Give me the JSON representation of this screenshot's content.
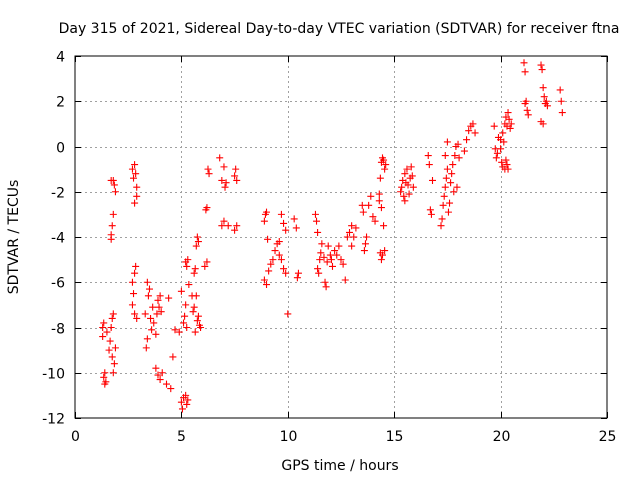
{
  "chart_data": {
    "type": "scatter",
    "title": "Day 315 of 2021, Sidereal Day-to-day VTEC variation (SDTVAR) for receiver ftna",
    "xlabel": "GPS time / hours",
    "ylabel": "SDTVAR / TECUs",
    "xlim": [
      0,
      25
    ],
    "ylim": [
      -12,
      4
    ],
    "xticks": [
      0,
      5,
      10,
      15,
      20,
      25
    ],
    "yticks": [
      -12,
      -10,
      -8,
      -6,
      -4,
      -2,
      0,
      2,
      4
    ],
    "xtick_labels": [
      "0",
      "5",
      "10",
      "15",
      "20",
      "25"
    ],
    "ytick_labels": [
      "-12",
      "-10",
      "-8",
      "-6",
      "-4",
      "-2",
      "0",
      "2",
      "4"
    ],
    "grid": true,
    "marker": "+",
    "color": "#ff0000",
    "series": [
      {
        "name": "SDTVAR",
        "points": [
          [
            1.3,
            -8.4
          ],
          [
            1.3,
            -8.0
          ],
          [
            1.35,
            -7.8
          ],
          [
            1.35,
            -10.2
          ],
          [
            1.4,
            -10.5
          ],
          [
            1.4,
            -10.0
          ],
          [
            1.45,
            -10.4
          ],
          [
            1.5,
            -8.2
          ],
          [
            1.6,
            -9.0
          ],
          [
            1.65,
            -8.6
          ],
          [
            1.7,
            -8.0
          ],
          [
            1.75,
            -7.6
          ],
          [
            1.8,
            -7.4
          ],
          [
            1.85,
            -9.6
          ],
          [
            1.8,
            -10.0
          ],
          [
            1.75,
            -9.3
          ],
          [
            1.9,
            -8.9
          ],
          [
            1.7,
            -3.9
          ],
          [
            1.75,
            -3.5
          ],
          [
            1.8,
            -3.0
          ],
          [
            1.7,
            -4.1
          ],
          [
            1.8,
            -1.5
          ],
          [
            1.85,
            -1.7
          ],
          [
            1.9,
            -2.0
          ],
          [
            1.7,
            -1.5
          ],
          [
            2.7,
            -1.0
          ],
          [
            2.75,
            -1.4
          ],
          [
            2.8,
            -0.8
          ],
          [
            2.85,
            -1.2
          ],
          [
            2.9,
            -2.2
          ],
          [
            2.9,
            -1.8
          ],
          [
            2.8,
            -2.5
          ],
          [
            2.7,
            -6.0
          ],
          [
            2.75,
            -6.5
          ],
          [
            2.8,
            -5.6
          ],
          [
            2.85,
            -5.3
          ],
          [
            2.7,
            -7.0
          ],
          [
            2.8,
            -7.4
          ],
          [
            2.9,
            -7.6
          ],
          [
            3.3,
            -7.4
          ],
          [
            3.35,
            -8.9
          ],
          [
            3.4,
            -8.5
          ],
          [
            3.45,
            -6.6
          ],
          [
            3.5,
            -6.3
          ],
          [
            3.55,
            -7.6
          ],
          [
            3.6,
            -8.1
          ],
          [
            3.65,
            -7.1
          ],
          [
            3.4,
            -6.0
          ],
          [
            3.7,
            -7.8
          ],
          [
            3.8,
            -8.3
          ],
          [
            3.85,
            -7.4
          ],
          [
            3.9,
            -6.8
          ],
          [
            4.0,
            -6.6
          ],
          [
            3.95,
            -7.1
          ],
          [
            4.05,
            -7.3
          ],
          [
            3.8,
            -9.8
          ],
          [
            3.9,
            -10.1
          ],
          [
            4.0,
            -10.3
          ],
          [
            4.1,
            -10.0
          ],
          [
            4.3,
            -10.5
          ],
          [
            4.5,
            -10.7
          ],
          [
            4.4,
            -6.7
          ],
          [
            4.6,
            -9.3
          ],
          [
            4.7,
            -8.1
          ],
          [
            4.9,
            -8.2
          ],
          [
            5.0,
            -6.4
          ],
          [
            5.1,
            -7.8
          ],
          [
            5.15,
            -7.5
          ],
          [
            5.2,
            -7.0
          ],
          [
            5.25,
            -8.0
          ],
          [
            5.0,
            -11.3
          ],
          [
            5.05,
            -11.6
          ],
          [
            5.1,
            -11.1
          ],
          [
            5.2,
            -11.0
          ],
          [
            5.25,
            -11.4
          ],
          [
            5.3,
            -11.2
          ],
          [
            5.2,
            -5.1
          ],
          [
            5.25,
            -5.3
          ],
          [
            5.3,
            -5.0
          ],
          [
            5.35,
            -6.1
          ],
          [
            5.5,
            -6.6
          ],
          [
            5.55,
            -7.3
          ],
          [
            5.6,
            -7.1
          ],
          [
            5.65,
            -8.2
          ],
          [
            5.7,
            -6.6
          ],
          [
            5.75,
            -7.7
          ],
          [
            5.8,
            -7.5
          ],
          [
            5.85,
            -7.9
          ],
          [
            5.9,
            -8.0
          ],
          [
            5.7,
            -4.4
          ],
          [
            5.75,
            -4.0
          ],
          [
            5.8,
            -4.2
          ],
          [
            5.6,
            -5.6
          ],
          [
            5.65,
            -5.4
          ],
          [
            6.1,
            -5.3
          ],
          [
            6.2,
            -5.1
          ],
          [
            6.25,
            -1.0
          ],
          [
            6.3,
            -1.2
          ],
          [
            6.15,
            -2.8
          ],
          [
            6.2,
            -2.7
          ],
          [
            6.8,
            -0.5
          ],
          [
            6.9,
            -1.5
          ],
          [
            7.0,
            -0.9
          ],
          [
            7.05,
            -1.8
          ],
          [
            7.1,
            -1.6
          ],
          [
            6.9,
            -3.5
          ],
          [
            7.0,
            -3.3
          ],
          [
            7.2,
            -3.5
          ],
          [
            7.5,
            -1.3
          ],
          [
            7.55,
            -1.0
          ],
          [
            7.6,
            -1.5
          ],
          [
            7.5,
            -3.7
          ],
          [
            7.6,
            -3.5
          ],
          [
            8.9,
            -3.3
          ],
          [
            8.95,
            -3.0
          ],
          [
            9.0,
            -2.9
          ],
          [
            9.05,
            -4.1
          ],
          [
            8.9,
            -5.9
          ],
          [
            9.0,
            -6.1
          ],
          [
            9.1,
            -5.5
          ],
          [
            9.2,
            -5.2
          ],
          [
            9.3,
            -5.0
          ],
          [
            9.4,
            -4.6
          ],
          [
            9.5,
            -4.3
          ],
          [
            9.6,
            -4.8
          ],
          [
            9.7,
            -5.0
          ],
          [
            9.8,
            -5.4
          ],
          [
            9.9,
            -5.6
          ],
          [
            9.6,
            -4.2
          ],
          [
            9.7,
            -3.0
          ],
          [
            9.8,
            -3.4
          ],
          [
            9.9,
            -3.7
          ],
          [
            10.0,
            -7.4
          ],
          [
            10.3,
            -3.2
          ],
          [
            10.4,
            -3.6
          ],
          [
            10.5,
            -5.6
          ],
          [
            10.45,
            -5.8
          ],
          [
            11.3,
            -3.0
          ],
          [
            11.35,
            -3.3
          ],
          [
            11.4,
            -3.8
          ],
          [
            11.4,
            -5.4
          ],
          [
            11.45,
            -5.6
          ],
          [
            11.5,
            -5.0
          ],
          [
            11.55,
            -4.7
          ],
          [
            11.6,
            -4.3
          ],
          [
            11.7,
            -4.9
          ],
          [
            11.75,
            -6.0
          ],
          [
            11.8,
            -6.2
          ],
          [
            11.85,
            -5.1
          ],
          [
            11.9,
            -4.4
          ],
          [
            12.0,
            -4.8
          ],
          [
            12.05,
            -5.0
          ],
          [
            12.1,
            -5.3
          ],
          [
            12.2,
            -4.6
          ],
          [
            12.3,
            -4.8
          ],
          [
            12.4,
            -4.4
          ],
          [
            12.5,
            -5.0
          ],
          [
            12.6,
            -5.2
          ],
          [
            12.7,
            -5.9
          ],
          [
            12.8,
            -4.0
          ],
          [
            12.9,
            -3.8
          ],
          [
            13.0,
            -3.5
          ],
          [
            13.1,
            -4.0
          ],
          [
            13.2,
            -3.6
          ],
          [
            13.0,
            -4.4
          ],
          [
            13.5,
            -2.6
          ],
          [
            13.55,
            -2.9
          ],
          [
            13.6,
            -4.6
          ],
          [
            13.65,
            -4.3
          ],
          [
            13.7,
            -4.0
          ],
          [
            13.8,
            -2.6
          ],
          [
            13.9,
            -2.2
          ],
          [
            14.0,
            -3.1
          ],
          [
            14.1,
            -3.3
          ],
          [
            14.3,
            -2.1
          ],
          [
            14.35,
            -1.4
          ],
          [
            14.4,
            -0.7
          ],
          [
            14.45,
            -0.5
          ],
          [
            14.5,
            -0.6
          ],
          [
            14.55,
            -1.0
          ],
          [
            14.6,
            -0.8
          ],
          [
            14.3,
            -2.4
          ],
          [
            14.4,
            -2.7
          ],
          [
            14.5,
            -3.5
          ],
          [
            14.35,
            -4.7
          ],
          [
            14.4,
            -5.0
          ],
          [
            14.45,
            -4.8
          ],
          [
            14.55,
            -4.6
          ],
          [
            15.3,
            -2.0
          ],
          [
            15.35,
            -1.8
          ],
          [
            15.4,
            -1.5
          ],
          [
            15.45,
            -2.2
          ],
          [
            15.5,
            -1.2
          ],
          [
            15.55,
            -1.6
          ],
          [
            15.6,
            -1.0
          ],
          [
            15.65,
            -1.7
          ],
          [
            15.7,
            -2.1
          ],
          [
            15.75,
            -1.4
          ],
          [
            15.8,
            -0.9
          ],
          [
            15.85,
            -1.3
          ],
          [
            15.9,
            -1.8
          ],
          [
            15.5,
            -2.4
          ],
          [
            16.6,
            -0.4
          ],
          [
            16.65,
            -0.8
          ],
          [
            16.7,
            -2.8
          ],
          [
            16.75,
            -3.0
          ],
          [
            16.8,
            -1.5
          ],
          [
            17.2,
            -3.5
          ],
          [
            17.25,
            -3.2
          ],
          [
            17.3,
            -2.6
          ],
          [
            17.35,
            -2.2
          ],
          [
            17.4,
            -1.8
          ],
          [
            17.45,
            -1.4
          ],
          [
            17.5,
            -1.0
          ],
          [
            17.55,
            -2.9
          ],
          [
            17.6,
            -2.5
          ],
          [
            17.65,
            -1.6
          ],
          [
            17.7,
            -1.2
          ],
          [
            17.75,
            -0.8
          ],
          [
            17.8,
            -2.0
          ],
          [
            17.85,
            -0.4
          ],
          [
            17.9,
            0.0
          ],
          [
            17.95,
            -1.8
          ],
          [
            18.0,
            0.1
          ],
          [
            18.05,
            -0.5
          ],
          [
            17.4,
            -0.4
          ],
          [
            17.5,
            0.2
          ],
          [
            18.3,
            -0.2
          ],
          [
            18.4,
            0.3
          ],
          [
            18.5,
            0.7
          ],
          [
            18.6,
            0.9
          ],
          [
            18.7,
            1.0
          ],
          [
            18.8,
            0.6
          ],
          [
            19.7,
            0.9
          ],
          [
            19.75,
            -0.1
          ],
          [
            19.8,
            -0.5
          ],
          [
            19.85,
            -0.3
          ],
          [
            19.9,
            0.4
          ],
          [
            20.0,
            -0.1
          ],
          [
            20.05,
            -0.7
          ],
          [
            20.1,
            -0.9
          ],
          [
            20.15,
            0.2
          ],
          [
            20.2,
            -1.0
          ],
          [
            20.25,
            -0.6
          ],
          [
            20.3,
            -0.8
          ],
          [
            20.35,
            -1.0
          ],
          [
            20.1,
            0.6
          ],
          [
            20.0,
            0.3
          ],
          [
            20.2,
            1.0
          ],
          [
            20.25,
            1.3
          ],
          [
            20.3,
            0.9
          ],
          [
            20.35,
            1.5
          ],
          [
            20.4,
            1.2
          ],
          [
            20.45,
            0.8
          ],
          [
            20.5,
            1.0
          ],
          [
            21.1,
            3.7
          ],
          [
            21.15,
            3.3
          ],
          [
            21.2,
            2.0
          ],
          [
            21.25,
            1.6
          ],
          [
            21.3,
            1.4
          ],
          [
            21.15,
            1.9
          ],
          [
            21.9,
            3.6
          ],
          [
            21.95,
            3.4
          ],
          [
            22.0,
            2.6
          ],
          [
            22.05,
            2.2
          ],
          [
            22.1,
            1.9
          ],
          [
            22.15,
            2.0
          ],
          [
            22.2,
            1.8
          ],
          [
            21.9,
            1.1
          ],
          [
            22.0,
            1.0
          ],
          [
            22.8,
            2.5
          ],
          [
            22.85,
            2.0
          ],
          [
            22.9,
            1.5
          ]
        ]
      }
    ]
  }
}
